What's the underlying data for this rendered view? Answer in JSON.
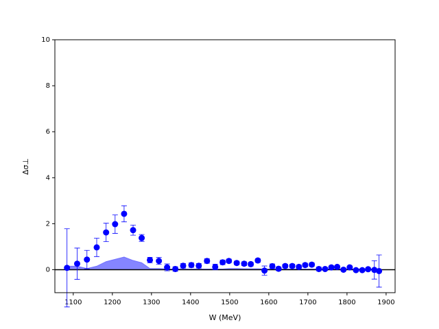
{
  "chart_data": {
    "type": "scatter",
    "x_label": "W (MeV)",
    "y_label": "Δσ⊥",
    "x": [
      1084,
      1110,
      1135,
      1160,
      1184,
      1207,
      1230,
      1253,
      1275,
      1296,
      1319,
      1340,
      1361,
      1381,
      1402,
      1421,
      1442,
      1463,
      1482,
      1498,
      1518,
      1537,
      1554,
      1572,
      1589,
      1609,
      1625,
      1642,
      1660,
      1677,
      1693,
      1710,
      1728,
      1744,
      1760,
      1775,
      1791,
      1807,
      1823,
      1839,
      1854,
      1870,
      1882
    ],
    "series": [
      {
        "color": "#0000ff",
        "values": [
          0.08,
          0.26,
          0.44,
          0.97,
          1.62,
          1.98,
          2.43,
          1.72,
          1.38,
          0.42,
          0.38,
          0.1,
          0.03,
          0.17,
          0.2,
          0.17,
          0.38,
          0.12,
          0.32,
          0.38,
          0.29,
          0.26,
          0.24,
          0.4,
          -0.04,
          0.15,
          0.04,
          0.16,
          0.16,
          0.12,
          0.2,
          0.22,
          0.03,
          0.03,
          0.1,
          0.12,
          0.0,
          0.1,
          -0.02,
          -0.02,
          0.02,
          -0.01,
          -0.06
        ],
        "errors": [
          1.7,
          0.68,
          0.4,
          0.4,
          0.4,
          0.4,
          0.35,
          0.22,
          0.15,
          0.12,
          0.15,
          0.15,
          0.1,
          0.1,
          0.1,
          0.1,
          0.1,
          0.12,
          0.1,
          0.08,
          0.08,
          0.08,
          0.08,
          0.08,
          0.2,
          0.1,
          0.08,
          0.08,
          0.08,
          0.08,
          0.08,
          0.08,
          0.08,
          0.06,
          0.06,
          0.06,
          0.06,
          0.06,
          0.06,
          0.06,
          0.06,
          0.4,
          0.7
        ]
      }
    ],
    "band": {
      "color": "#7070ff",
      "values": [
        0.15,
        0.15,
        0.05,
        0.15,
        0.35,
        0.45,
        0.55,
        0.4,
        0.3,
        0.05,
        0.05,
        0.03,
        0.03,
        0.03,
        0.03,
        0.03,
        0.03,
        0.03,
        0.03,
        0.05,
        0.05,
        0.04,
        0.04,
        0.04,
        0.03,
        0.03,
        0.03,
        0.03,
        0.03,
        0.03,
        0.03,
        0.03,
        0.03,
        0.03,
        0.03,
        0.03,
        0.03,
        0.03,
        0.03,
        0.03,
        0.03,
        0.03,
        0.03
      ]
    },
    "zero_line": {
      "value": 0,
      "color": "#000000"
    },
    "xlim": [
      1053,
      1923
    ],
    "ylim": [
      -1,
      10
    ],
    "xticks": [
      1100,
      1200,
      1300,
      1400,
      1500,
      1600,
      1700,
      1800,
      1900
    ],
    "yticks": [
      0,
      2,
      4,
      6,
      8,
      10
    ]
  }
}
